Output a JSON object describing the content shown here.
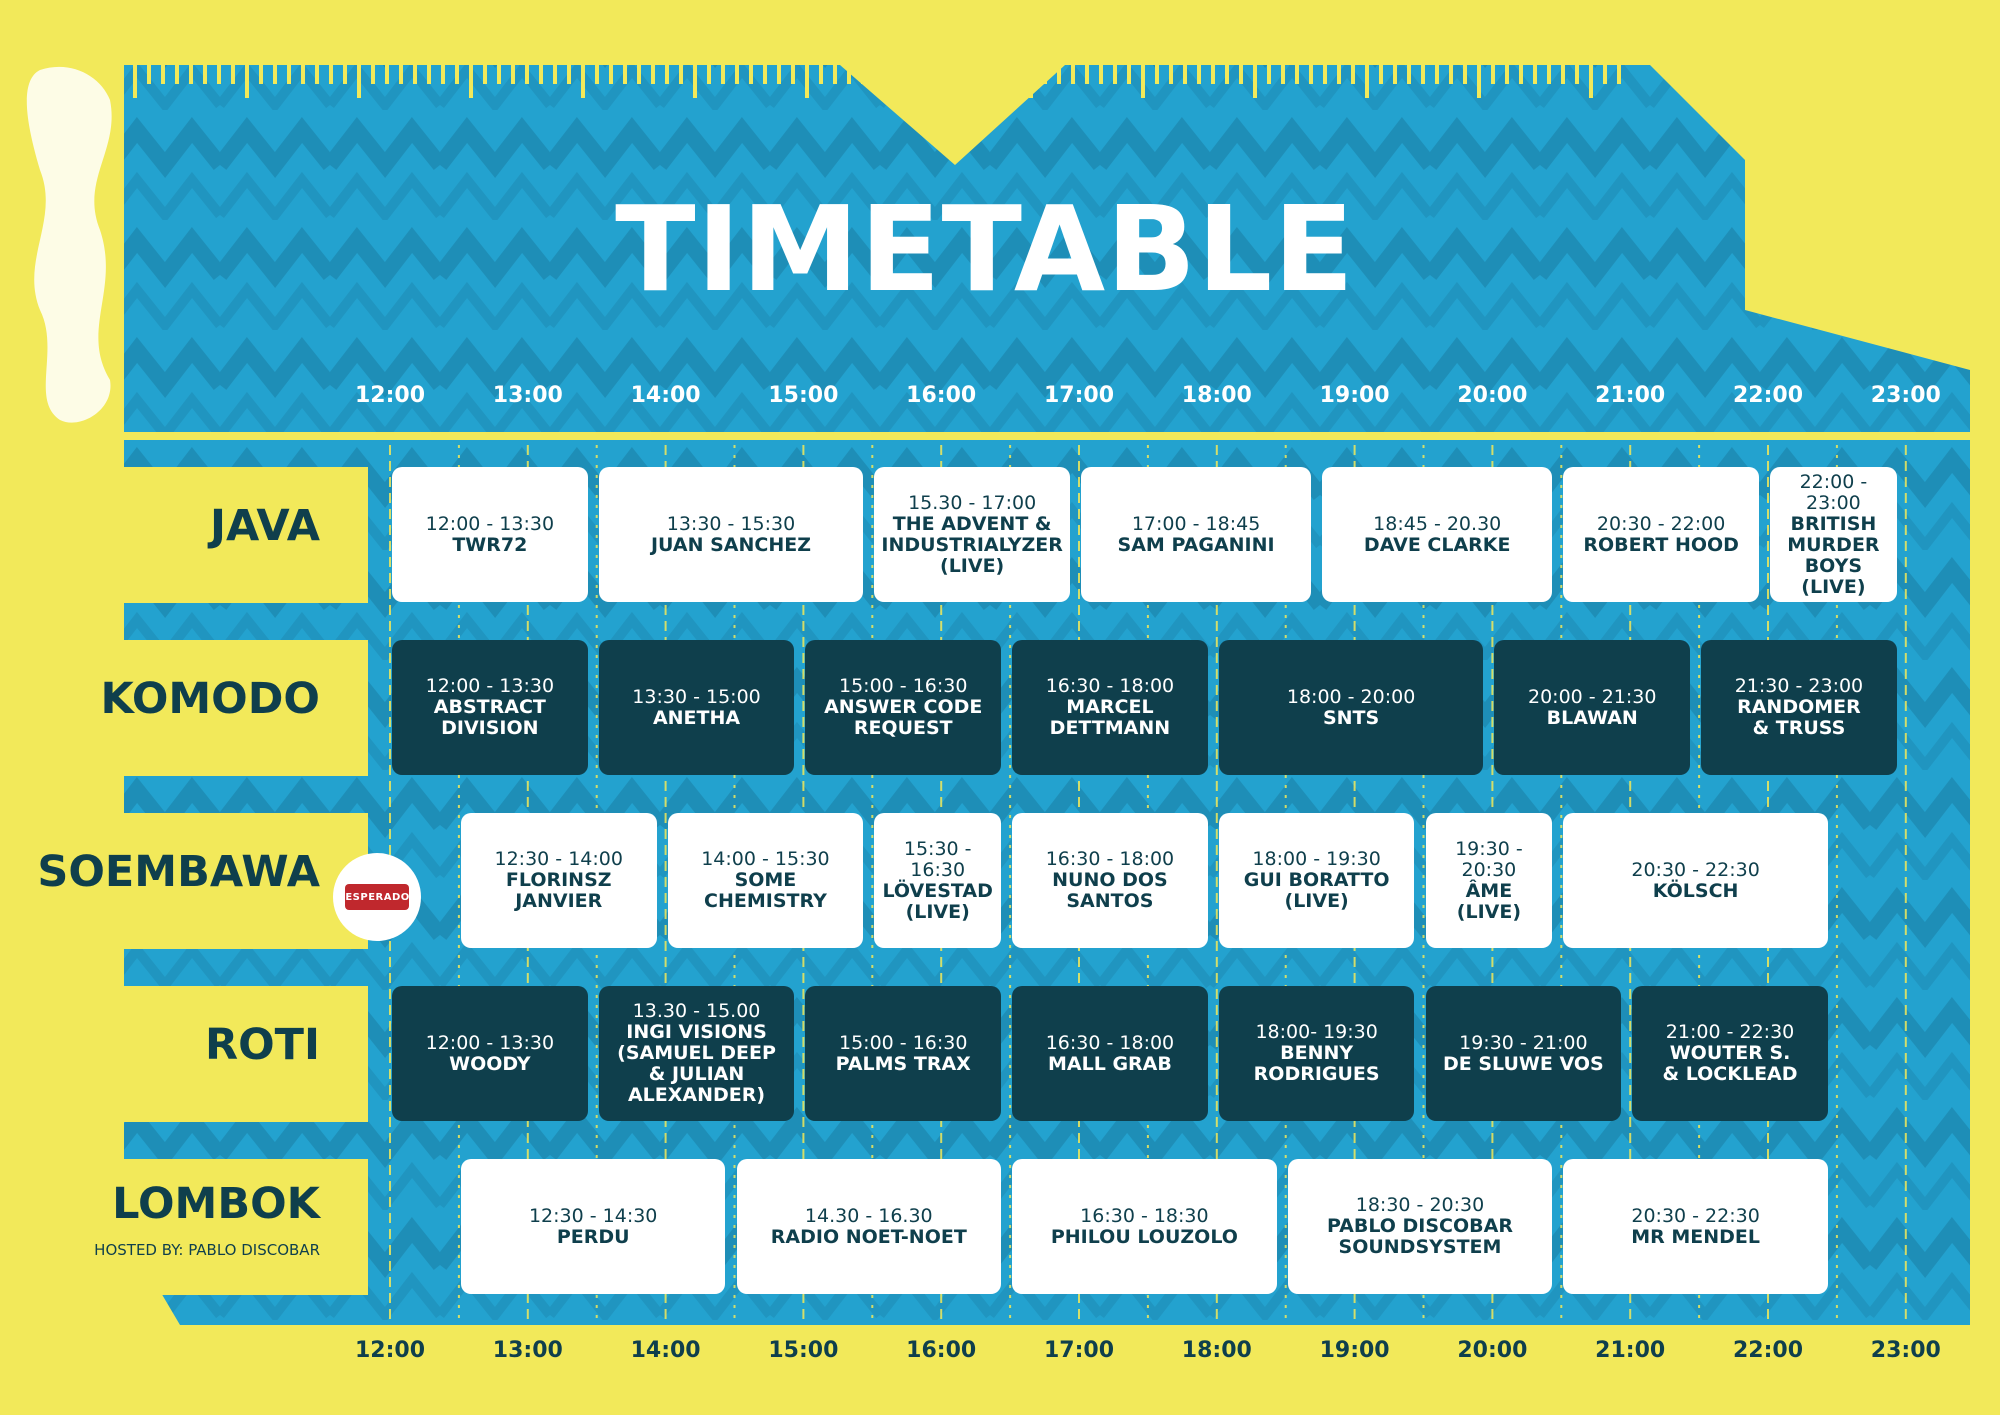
{
  "title": "TIMETABLE",
  "hours": [
    "12:00",
    "13:00",
    "14:00",
    "15:00",
    "16:00",
    "17:00",
    "18:00",
    "19:00",
    "20:00",
    "21:00",
    "22:00",
    "23:00"
  ],
  "stages": [
    {
      "name": "JAVA",
      "sub": ""
    },
    {
      "name": "KOMODO",
      "sub": ""
    },
    {
      "name": "SOEMBAWA",
      "sub": ""
    },
    {
      "name": "ROTI",
      "sub": ""
    },
    {
      "name": "LOMBOK",
      "sub": "HOSTED BY: PABLO DISCOBAR"
    }
  ],
  "sponsor": {
    "label": "DESPERADOS"
  },
  "slots": [
    {
      "row": 0,
      "style": "light",
      "time": "12:00 - 13:30",
      "artist": "TWR72"
    },
    {
      "row": 0,
      "style": "light",
      "time": "13:30 - 15:30",
      "artist": "JUAN SANCHEZ"
    },
    {
      "row": 0,
      "style": "light",
      "time": "15.30 - 17:00",
      "artist": "THE ADVENT &\nINDUSTRIALYZER\n(LIVE)"
    },
    {
      "row": 0,
      "style": "light",
      "time": "17:00 - 18:45",
      "artist": "SAM PAGANINI"
    },
    {
      "row": 0,
      "style": "light",
      "time": "18:45 - 20.30",
      "artist": "DAVE CLARKE"
    },
    {
      "row": 0,
      "style": "light",
      "time": "20:30 - 22:00",
      "artist": "ROBERT HOOD"
    },
    {
      "row": 0,
      "style": "light",
      "time": "22:00 -\n23:00",
      "artist": "BRITISH\nMURDER\nBOYS\n(LIVE)"
    },
    {
      "row": 1,
      "style": "dark",
      "time": "12:00 - 13:30",
      "artist": "ABSTRACT\nDIVISION"
    },
    {
      "row": 1,
      "style": "dark",
      "time": "13:30 - 15:00",
      "artist": "ANETHA"
    },
    {
      "row": 1,
      "style": "dark",
      "time": "15:00 - 16:30",
      "artist": "ANSWER CODE\nREQUEST"
    },
    {
      "row": 1,
      "style": "dark",
      "time": "16:30 - 18:00",
      "artist": "MARCEL\nDETTMANN"
    },
    {
      "row": 1,
      "style": "dark",
      "time": "18:00 - 20:00",
      "artist": "SNTS"
    },
    {
      "row": 1,
      "style": "dark",
      "time": "20:00 - 21:30",
      "artist": "BLAWAN"
    },
    {
      "row": 1,
      "style": "dark",
      "time": "21:30 - 23:00",
      "artist": "RANDOMER\n& TRUSS"
    },
    {
      "row": 2,
      "style": "light",
      "time": "12:30 - 14:00",
      "artist": "FLORINSZ\nJANVIER"
    },
    {
      "row": 2,
      "style": "light",
      "time": "14:00 - 15:30",
      "artist": "SOME\nCHEMISTRY"
    },
    {
      "row": 2,
      "style": "light",
      "time": "15:30 -\n16:30",
      "artist": "LÖVESTAD\n(LIVE)"
    },
    {
      "row": 2,
      "style": "light",
      "time": "16:30 - 18:00",
      "artist": "NUNO DOS\nSANTOS"
    },
    {
      "row": 2,
      "style": "light",
      "time": "18:00 - 19:30",
      "artist": "GUI BORATTO\n(LIVE)"
    },
    {
      "row": 2,
      "style": "light",
      "time": "19:30 -\n20:30",
      "artist": "ÂME\n(LIVE)"
    },
    {
      "row": 2,
      "style": "light",
      "time": "20:30 - 22:30",
      "artist": "KÖLSCH"
    },
    {
      "row": 3,
      "style": "dark",
      "time": "12:00 - 13:30",
      "artist": "WOODY"
    },
    {
      "row": 3,
      "style": "dark",
      "time": "13.30 - 15.00",
      "artist": "INGI VISIONS\n(SAMUEL DEEP\n& JULIAN\nALEXANDER)"
    },
    {
      "row": 3,
      "style": "dark",
      "time": "15:00 - 16:30",
      "artist": "PALMS TRAX"
    },
    {
      "row": 3,
      "style": "dark",
      "time": "16:30 - 18:00",
      "artist": "MALL GRAB"
    },
    {
      "row": 3,
      "style": "dark",
      "time": "18:00- 19:30",
      "artist": "BENNY\nRODRIGUES"
    },
    {
      "row": 3,
      "style": "dark",
      "time": "19:30 - 21:00",
      "artist": "DE SLUWE VOS"
    },
    {
      "row": 3,
      "style": "dark",
      "time": "21:00 - 22:30",
      "artist": "WOUTER S.\n& LOCKLEAD"
    },
    {
      "row": 4,
      "style": "light",
      "time": "12:30 - 14:30",
      "artist": "PERDU"
    },
    {
      "row": 4,
      "style": "light",
      "time": "14.30 - 16.30",
      "artist": "RADIO NOET-NOET"
    },
    {
      "row": 4,
      "style": "light",
      "time": "16:30 - 18:30",
      "artist": "PHILOU LOUZOLO"
    },
    {
      "row": 4,
      "style": "light",
      "time": "18:30 - 20:30",
      "artist": "PABLO DISCOBAR\nSOUNDSYSTEM"
    },
    {
      "row": 4,
      "style": "light",
      "time": "20:30 - 22:30",
      "artist": "MR MENDEL"
    }
  ]
}
